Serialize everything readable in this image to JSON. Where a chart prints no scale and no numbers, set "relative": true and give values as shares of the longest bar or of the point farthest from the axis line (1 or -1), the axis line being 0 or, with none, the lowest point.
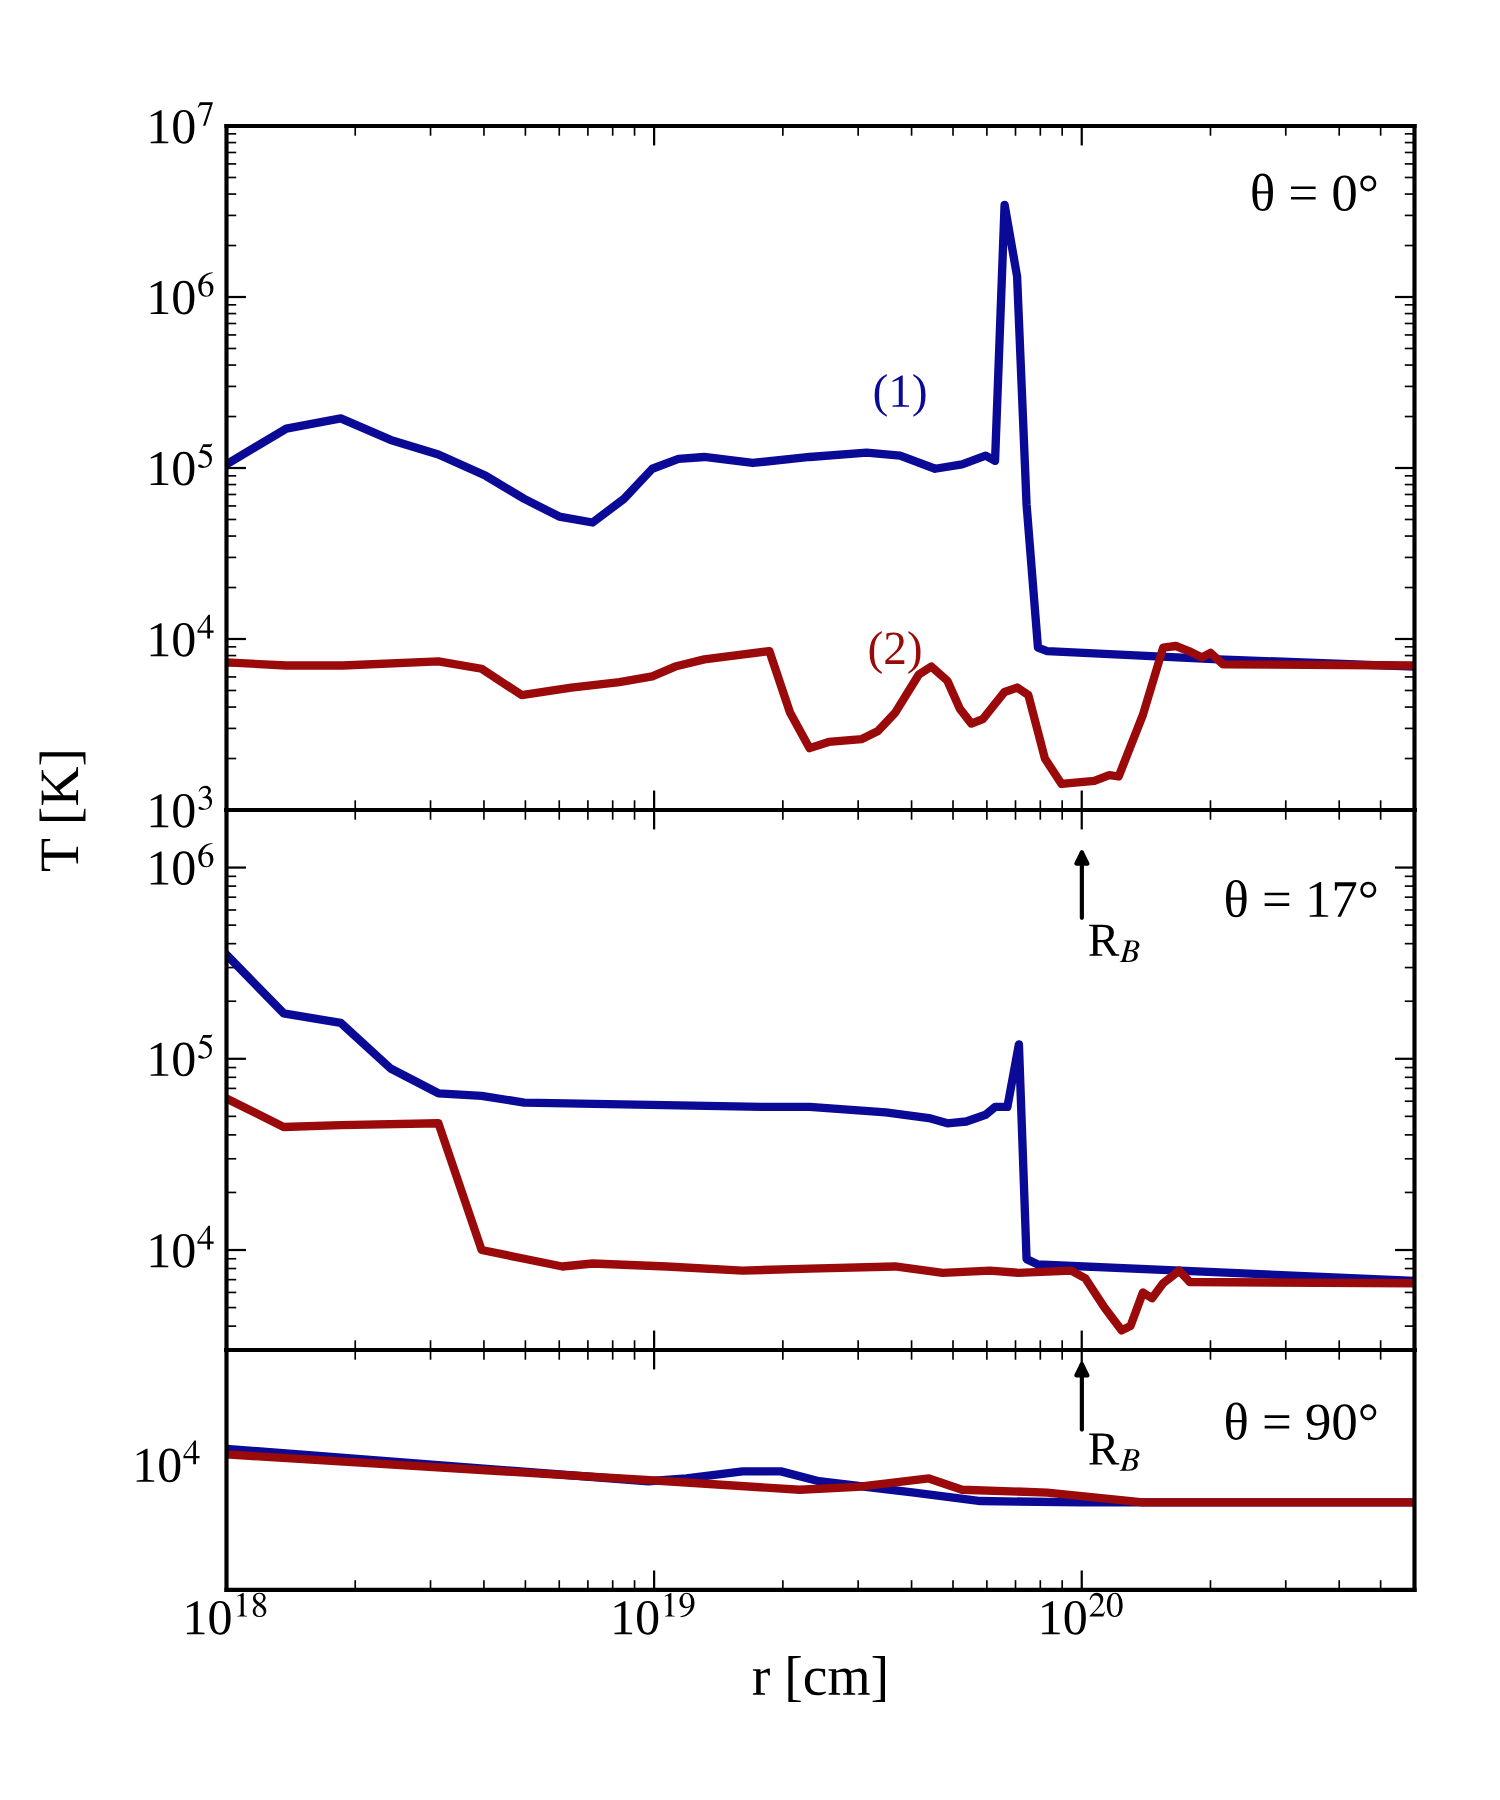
{
  "chart_data": [
    {
      "type": "line",
      "log": "xy",
      "xlim": [
        1e+18,
        6e+20
      ],
      "ylim": [
        1000,
        10000000
      ],
      "xticks": [
        {
          "value": 1e+18,
          "label": null
        },
        {
          "value": 1e+19,
          "label": null
        },
        {
          "value": 1e+20,
          "label": null
        }
      ],
      "yticks": [
        {
          "value": 1000,
          "label": "10$^{3}$"
        },
        {
          "value": 10000,
          "label": "10$^{4}$"
        },
        {
          "value": 100000,
          "label": "10$^{5}$"
        },
        {
          "value": 1000000,
          "label": "10$^{6}$"
        },
        {
          "value": 10000000,
          "label": "10$^{7}$"
        }
      ],
      "tick_labels": "y",
      "grid": false,
      "legend": false,
      "annotations": [
        "θ = 0°"
      ],
      "series": [
        {
          "name": "(1)",
          "color": "#0a0a96",
          "x": [
            1e+18,
            1.38e+18,
            1.85e+18,
            2.42e+18,
            3.13e+18,
            4.04e+18,
            4.97e+18,
            6e+18,
            7.18e+18,
            8.5e+18,
            9.9e+18,
            1.14e+19,
            1.31e+19,
            1.7e+19,
            2.31e+19,
            3.14e+19,
            3.76e+19,
            4.54e+19,
            5.25e+19,
            5.96e+19,
            6.27e+19,
            6.6e+19,
            7.06e+19,
            7.43e+19,
            7.9e+19,
            8.3e+19,
            2.09e+20,
            6e+20
          ],
          "values": [
            105000,
            170000,
            195000,
            146000,
            120000,
            90000,
            66000,
            52000,
            48000,
            66000,
            99000,
            113000,
            116000,
            107000,
            116000,
            123000,
            118000,
            99000,
            105000,
            118000,
            110000,
            3460000,
            1320000,
            61000,
            8900,
            8500,
            7600,
            6900
          ]
        },
        {
          "name": "(2)",
          "color": "#9a0a0a",
          "x": [
            1e+18,
            1.38e+18,
            1.87e+18,
            3.13e+18,
            3.95e+18,
            4.9e+18,
            6.4e+18,
            8.3e+18,
            9.9e+18,
            1.12e+19,
            1.31e+19,
            1.86e+19,
            2.08e+19,
            2.31e+19,
            2.56e+19,
            3.06e+19,
            3.34e+19,
            3.66e+19,
            4.16e+19,
            4.45e+19,
            4.85e+19,
            5.19e+19,
            5.52e+19,
            5.87e+19,
            6.6e+19,
            7.06e+19,
            7.5e+19,
            8.2e+19,
            8.97e+19,
            1.07e+20,
            1.16e+20,
            1.22e+20,
            1.39e+20,
            1.55e+20,
            1.66e+20,
            1.78e+20,
            1.91e+20,
            2e+20,
            2.14e+20,
            6e+20
          ],
          "values": [
            7300,
            7000,
            7000,
            7400,
            6700,
            4700,
            5200,
            5600,
            6050,
            6900,
            7600,
            8500,
            3700,
            2300,
            2500,
            2600,
            2900,
            3700,
            6200,
            6900,
            5700,
            3900,
            3200,
            3400,
            4900,
            5200,
            4700,
            2000,
            1420,
            1480,
            1600,
            1570,
            3600,
            8900,
            9100,
            8500,
            7800,
            8300,
            7100,
            7000
          ]
        }
      ]
    },
    {
      "type": "line",
      "log": "xy",
      "xlim": [
        1e+18,
        6e+20
      ],
      "ylim": [
        3000,
        2000000
      ],
      "xticks": [
        {
          "value": 1e+18,
          "label": null
        },
        {
          "value": 1e+19,
          "label": null
        },
        {
          "value": 1e+20,
          "label": null
        }
      ],
      "yticks": [
        {
          "value": 10000,
          "label": "10$^{4}$"
        },
        {
          "value": 100000,
          "label": "10$^{5}$"
        },
        {
          "value": 1000000,
          "label": "10$^{6}$"
        }
      ],
      "tick_labels": "y",
      "grid": false,
      "legend": false,
      "ylabel": "T [K]",
      "annotations": [
        "θ = 17°",
        "R$_{B}$"
      ],
      "series": [
        {
          "color": "#0a0a96",
          "x": [
            1e+18,
            1.36e+18,
            1.85e+18,
            2.42e+18,
            3.13e+18,
            3.95e+18,
            4.97e+18,
            1.79e+19,
            2.31e+19,
            3.48e+19,
            4.39e+19,
            4.85e+19,
            5.37e+19,
            5.96e+19,
            6.27e+19,
            6.7e+19,
            7.13e+19,
            7.43e+19,
            7.9e+19,
            6e+20
          ],
          "values": [
            350000,
            173000,
            154000,
            89000,
            66000,
            64000,
            59000,
            56000,
            56000,
            52500,
            49000,
            46000,
            47000,
            51000,
            56000,
            56000,
            119000,
            8960,
            8400,
            6900
          ]
        },
        {
          "color": "#9a0a0a",
          "x": [
            1e+18,
            1.36e+18,
            1.85e+18,
            3.13e+18,
            3.95e+18,
            4.97e+18,
            6.1e+18,
            7.18e+18,
            1.07e+19,
            1.61e+19,
            2.31e+19,
            3.66e+19,
            4.73e+19,
            6.1e+19,
            7.1e+19,
            9.45e+19,
            1.02e+20,
            1.13e+20,
            1.24e+20,
            1.3e+20,
            1.39e+20,
            1.46e+20,
            1.55e+20,
            1.69e+20,
            1.79e+20,
            6e+20
          ],
          "values": [
            62000,
            44000,
            45000,
            46000,
            10000,
            9000,
            8200,
            8500,
            8200,
            7800,
            8000,
            8200,
            7600,
            7800,
            7600,
            7800,
            7100,
            5000,
            3800,
            4000,
            6000,
            5600,
            6700,
            7800,
            6800,
            6700
          ]
        }
      ]
    },
    {
      "type": "line",
      "log": "x",
      "xlim": [
        1e+18,
        6e+20
      ],
      "relative": true,
      "xticks": [
        {
          "value": 1e+18,
          "label": "10$^{18}$"
        },
        {
          "value": 1e+19,
          "label": "10$^{19}$"
        },
        {
          "value": 1e+20,
          "label": "10$^{20}$"
        }
      ],
      "grid": false,
      "legend": false,
      "xlabel": "r [cm]",
      "annotations": [
        "θ = 90°",
        "R$_{B}$",
        "10$^{4}$"
      ],
      "series": [
        {
          "color": "#0a0a96",
          "x": [
            1e+18,
            9.7e+18,
            1.19e+19,
            1.61e+19,
            1.98e+19,
            2.43e+19,
            4.06e+19,
            5.8e+19,
            1e+20,
            6e+20
          ],
          "values": [
            1,
            0.77,
            0.79,
            0.84,
            0.84,
            0.77,
            0.69,
            0.63,
            0.62,
            0.62
          ]
        },
        {
          "color": "#9a0a0a",
          "x": [
            1e+18,
            1.07e+19,
            2.19e+19,
            2.99e+19,
            4.39e+19,
            5.25e+19,
            8.3e+19,
            1.39e+20,
            6e+20
          ],
          "values": [
            0.96,
            0.77,
            0.71,
            0.73,
            0.79,
            0.71,
            0.69,
            0.62,
            0.62
          ]
        }
      ]
    }
  ]
}
